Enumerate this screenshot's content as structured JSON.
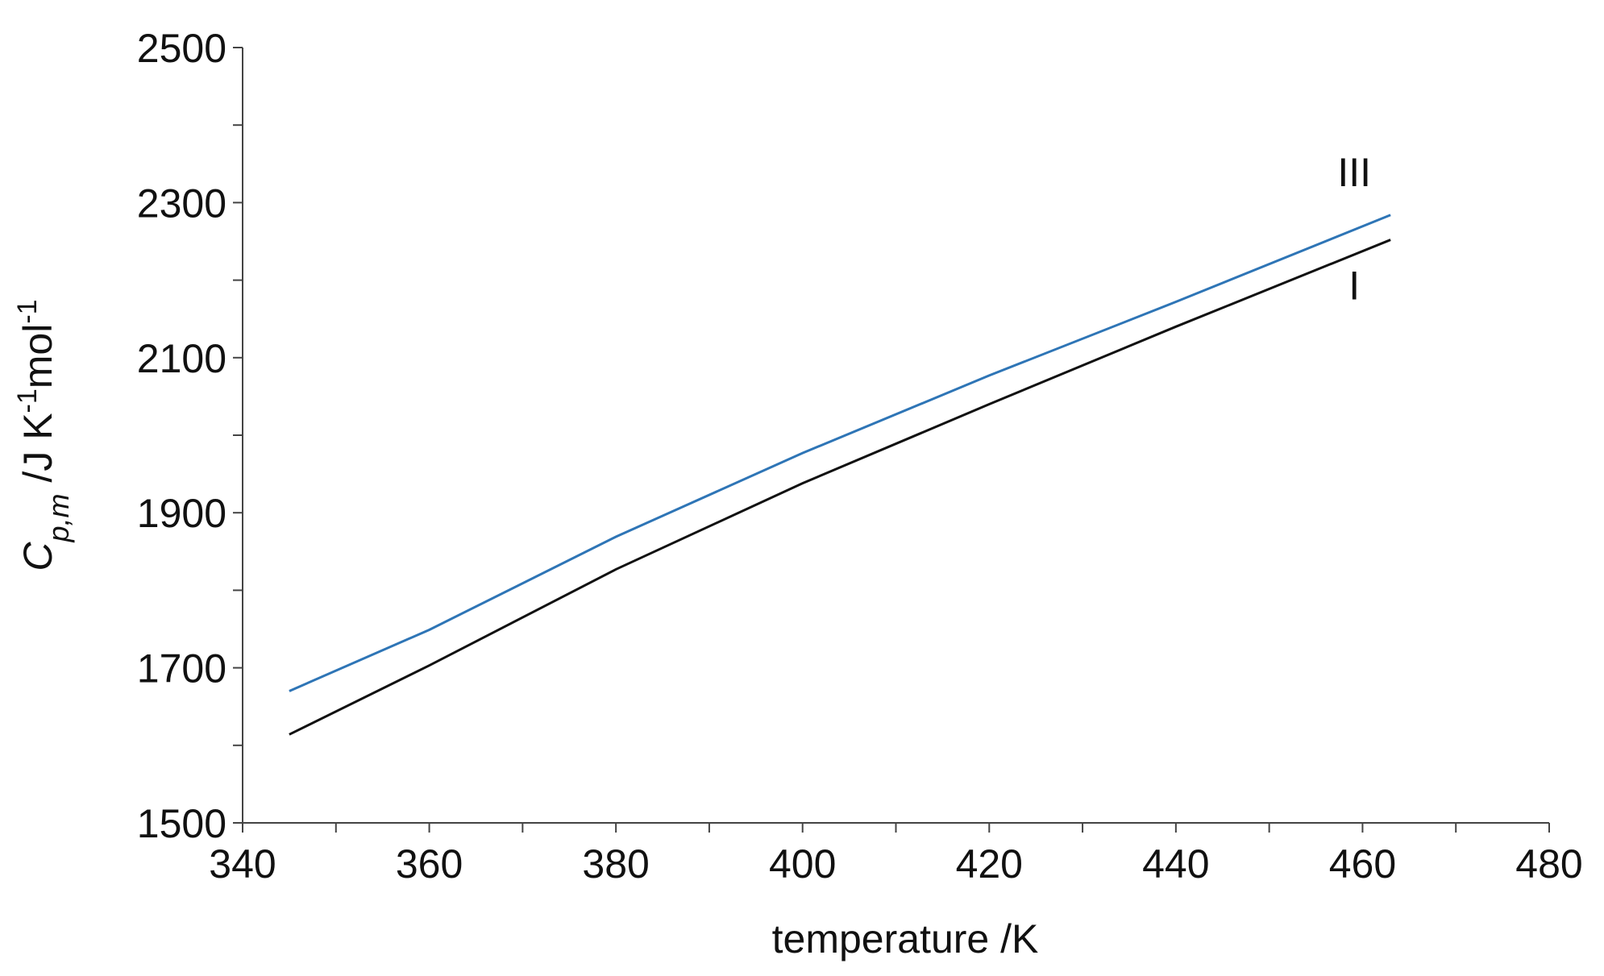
{
  "chart_data": {
    "type": "line",
    "xlabel": "temperature /K",
    "ylabel_parts": [
      {
        "text": "C",
        "style": "italic"
      },
      {
        "text": "p,m",
        "style": "italic-sub"
      },
      {
        "text": " /J K",
        "style": "normal"
      },
      {
        "text": "-1",
        "style": "sup"
      },
      {
        "text": "mol",
        "style": "normal"
      },
      {
        "text": "-1",
        "style": "sup"
      }
    ],
    "x": [
      345,
      360,
      380,
      400,
      420,
      440,
      463
    ],
    "series": [
      {
        "name": "III",
        "color": "#2e75b6",
        "values": [
          1670,
          1749,
          1869,
          1977,
          2077,
          2172,
          2284
        ]
      },
      {
        "name": "I",
        "color": "#111111",
        "values": [
          1614,
          1703,
          1827,
          1938,
          2040,
          2140,
          2252
        ]
      }
    ],
    "xlim": [
      340,
      480
    ],
    "ylim": [
      1500,
      2500
    ],
    "xticks": [
      340,
      360,
      380,
      400,
      420,
      440,
      460,
      480
    ],
    "yticks": [
      1500,
      1700,
      1900,
      2100,
      2300,
      2500
    ],
    "xminor_ticks": [
      350,
      370,
      390,
      410,
      430,
      450,
      470
    ],
    "yminor_ticks": [
      1600,
      1800,
      2000,
      2200,
      2400
    ],
    "grid": false
  }
}
